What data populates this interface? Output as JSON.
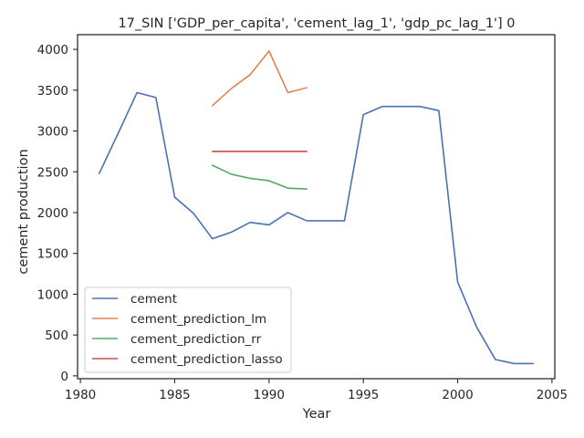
{
  "chart_data": {
    "type": "line",
    "title": "17_SIN ['GDP_per_capita', 'cement_lag_1', 'gdp_pc_lag_1'] 0",
    "xlabel": "Year",
    "ylabel": "cement production",
    "xlim": [
      1979.85,
      2005.15
    ],
    "ylim": [
      -35,
      4180
    ],
    "xticks": [
      1980,
      1985,
      1990,
      1995,
      2000,
      2005
    ],
    "yticks": [
      0,
      500,
      1000,
      1500,
      2000,
      2500,
      3000,
      3500,
      4000
    ],
    "grid": false,
    "legend_position": "lower-left",
    "series": [
      {
        "name": "cement",
        "color": "#4c72b0",
        "x": [
          1981,
          1982,
          1983,
          1984,
          1985,
          1986,
          1987,
          1988,
          1989,
          1990,
          1991,
          1992,
          1993,
          1994,
          1995,
          1996,
          1997,
          1998,
          1999,
          2000,
          2001,
          2002,
          2003,
          2004
        ],
        "y": [
          2480,
          2970,
          3470,
          3410,
          2190,
          1990,
          1680,
          1760,
          1880,
          1850,
          2000,
          1900,
          1900,
          1900,
          3200,
          3300,
          3300,
          3300,
          3250,
          1150,
          600,
          200,
          150,
          150
        ]
      },
      {
        "name": "cement_prediction_lm",
        "color": "#dd8452",
        "x": [
          1987,
          1988,
          1989,
          1990,
          1991,
          1992
        ],
        "y": [
          3310,
          3520,
          3690,
          3980,
          3470,
          3530
        ]
      },
      {
        "name": "cement_prediction_rr",
        "color": "#55a868",
        "x": [
          1987,
          1988,
          1989,
          1990,
          1991,
          1992
        ],
        "y": [
          2580,
          2470,
          2420,
          2390,
          2300,
          2290
        ]
      },
      {
        "name": "cement_prediction_lasso",
        "color": "#c44e52",
        "x": [
          1987,
          1988,
          1989,
          1990,
          1991,
          1992
        ],
        "y": [
          2750,
          2750,
          2750,
          2750,
          2750,
          2750
        ]
      }
    ]
  }
}
